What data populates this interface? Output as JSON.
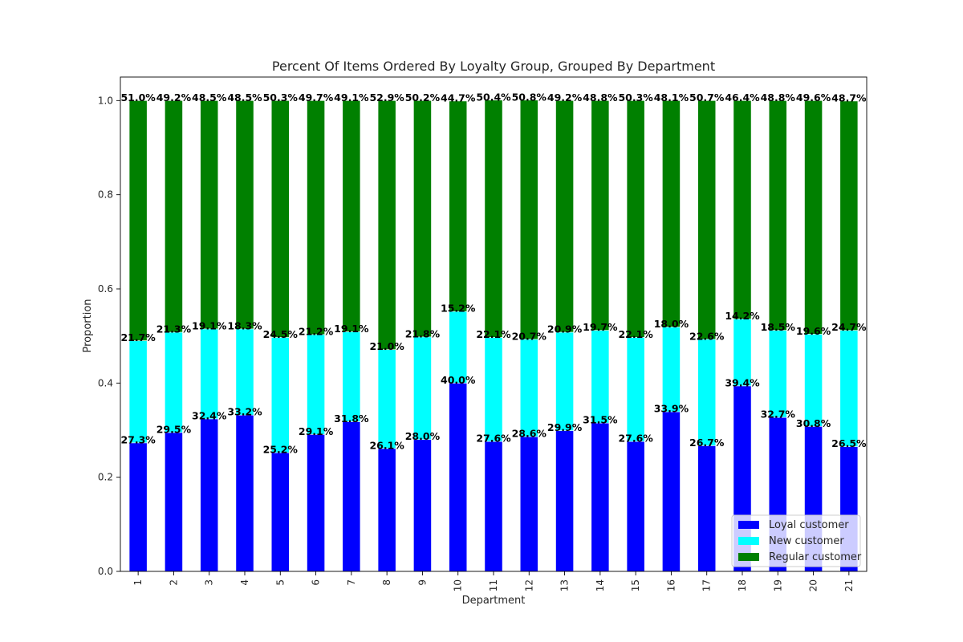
{
  "chart_data": {
    "type": "bar",
    "stacked": true,
    "title": "Percent Of Items Ordered By Loyalty Group, Grouped By Department",
    "xlabel": "Department",
    "ylabel": "Proportion",
    "ylim": [
      0,
      1.05
    ],
    "yticks": [
      "0.0",
      "0.2",
      "0.4",
      "0.6",
      "0.8",
      "1.0"
    ],
    "grid": false,
    "legend_position": "lower-right",
    "categories": [
      "1",
      "2",
      "3",
      "4",
      "5",
      "6",
      "7",
      "8",
      "9",
      "10",
      "11",
      "12",
      "13",
      "14",
      "15",
      "16",
      "17",
      "18",
      "19",
      "20",
      "21"
    ],
    "series": [
      {
        "name": "Loyal customer",
        "color": "#0000ff",
        "values": [
          0.273,
          0.295,
          0.324,
          0.332,
          0.252,
          0.291,
          0.318,
          0.261,
          0.28,
          0.4,
          0.276,
          0.286,
          0.299,
          0.315,
          0.276,
          0.339,
          0.267,
          0.394,
          0.327,
          0.308,
          0.265
        ],
        "labels": [
          "27.3%",
          "29.5%",
          "32.4%",
          "33.2%",
          "25.2%",
          "29.1%",
          "31.8%",
          "26.1%",
          "28.0%",
          "40.0%",
          "27.6%",
          "28.6%",
          "29.9%",
          "31.5%",
          "27.6%",
          "33.9%",
          "26.7%",
          "39.4%",
          "32.7%",
          "30.8%",
          "26.5%"
        ]
      },
      {
        "name": "New customer",
        "color": "#00ffff",
        "values": [
          0.217,
          0.213,
          0.191,
          0.183,
          0.245,
          0.212,
          0.191,
          0.21,
          0.218,
          0.152,
          0.221,
          0.207,
          0.209,
          0.197,
          0.221,
          0.18,
          0.226,
          0.142,
          0.185,
          0.196,
          0.247
        ],
        "labels": [
          "21.7%",
          "21.3%",
          "19.1%",
          "18.3%",
          "24.5%",
          "21.2%",
          "19.1%",
          "21.0%",
          "21.8%",
          "15.2%",
          "22.1%",
          "20.7%",
          "20.9%",
          "19.7%",
          "22.1%",
          "18.0%",
          "22.6%",
          "14.2%",
          "18.5%",
          "19.6%",
          "24.7%"
        ]
      },
      {
        "name": "Regular customer",
        "color": "#008000",
        "values": [
          0.51,
          0.492,
          0.485,
          0.485,
          0.503,
          0.497,
          0.491,
          0.529,
          0.502,
          0.447,
          0.504,
          0.508,
          0.492,
          0.488,
          0.503,
          0.481,
          0.507,
          0.464,
          0.488,
          0.496,
          0.487
        ],
        "labels": [
          "51.0%",
          "49.2%",
          "48.5%",
          "48.5%",
          "50.3%",
          "49.7%",
          "49.1%",
          "52.9%",
          "50.2%",
          "44.7%",
          "50.4%",
          "50.8%",
          "49.2%",
          "48.8%",
          "50.3%",
          "48.1%",
          "50.7%",
          "46.4%",
          "48.8%",
          "49.6%",
          "48.7%"
        ]
      }
    ]
  }
}
